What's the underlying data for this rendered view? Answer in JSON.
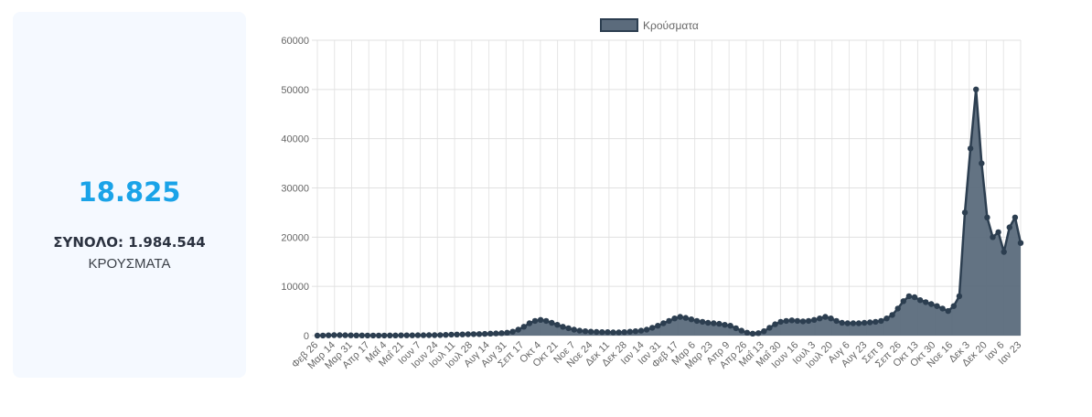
{
  "stat_card": {
    "value": "18.825",
    "total_label": "ΣΥΝΟΛΟ: 1.984.544",
    "subtitle": "ΚΡΟΥΣΜΑΤΑ"
  },
  "colors": {
    "accent": "#1aa3e8",
    "series_fill": "#5b6b7c",
    "series_line": "#2c3e50",
    "card_bg": "#f5f9ff"
  },
  "chart_data": {
    "type": "area",
    "legend_position": "top-center",
    "grid": true,
    "ylim": [
      0,
      60000
    ],
    "yticks": [
      0,
      10000,
      20000,
      30000,
      40000,
      50000,
      60000
    ],
    "xtick_labels": [
      "Φεβ 26",
      "Μαρ 14",
      "Μαρ 31",
      "Απρ 17",
      "Μαΐ 4",
      "Μαΐ 21",
      "Ιουν 7",
      "Ιουν 24",
      "Ιουλ 11",
      "Ιουλ 28",
      "Αυγ 14",
      "Αυγ 31",
      "Σεπ 17",
      "Οκτ 4",
      "Οκτ 21",
      "Νοε 7",
      "Νοε 24",
      "Δεκ 11",
      "Δεκ 28",
      "Ιαν 14",
      "Ιαν 31",
      "Φεβ 17",
      "Μαρ 6",
      "Μαρ 23",
      "Απρ 9",
      "Απρ 26",
      "Μαΐ 13",
      "Μαΐ 30",
      "Ιουν 16",
      "Ιουλ 3",
      "Ιουλ 20",
      "Αυγ 6",
      "Αυγ 23",
      "Σεπ 9",
      "Σεπ 26",
      "Οκτ 13",
      "Οκτ 30",
      "Νοε 16",
      "Δεκ 3",
      "Δεκ 20",
      "Ιαν 6",
      "Ιαν 23"
    ],
    "series": [
      {
        "name": "Κρούσματα",
        "points": [
          [
            0,
            5
          ],
          [
            1,
            20
          ],
          [
            2,
            60
          ],
          [
            3,
            100
          ],
          [
            4,
            95
          ],
          [
            5,
            80
          ],
          [
            6,
            60
          ],
          [
            7,
            40
          ],
          [
            8,
            30
          ],
          [
            9,
            25
          ],
          [
            10,
            20
          ],
          [
            11,
            20
          ],
          [
            12,
            25
          ],
          [
            13,
            30
          ],
          [
            14,
            40
          ],
          [
            15,
            50
          ],
          [
            16,
            50
          ],
          [
            17,
            60
          ],
          [
            18,
            70
          ],
          [
            19,
            80
          ],
          [
            20,
            90
          ],
          [
            21,
            100
          ],
          [
            22,
            120
          ],
          [
            23,
            150
          ],
          [
            24,
            200
          ],
          [
            25,
            220
          ],
          [
            26,
            250
          ],
          [
            27,
            270
          ],
          [
            28,
            300
          ],
          [
            29,
            320
          ],
          [
            30,
            350
          ],
          [
            31,
            400
          ],
          [
            32,
            450
          ],
          [
            33,
            500
          ],
          [
            34,
            600
          ],
          [
            35,
            800
          ],
          [
            36,
            1200
          ],
          [
            37,
            1800
          ],
          [
            38,
            2500
          ],
          [
            39,
            3000
          ],
          [
            40,
            3200
          ],
          [
            41,
            3000
          ],
          [
            42,
            2600
          ],
          [
            43,
            2200
          ],
          [
            44,
            1800
          ],
          [
            45,
            1500
          ],
          [
            46,
            1200
          ],
          [
            47,
            1000
          ],
          [
            48,
            900
          ],
          [
            49,
            800
          ],
          [
            50,
            750
          ],
          [
            51,
            700
          ],
          [
            52,
            700
          ],
          [
            53,
            650
          ],
          [
            54,
            650
          ],
          [
            55,
            700
          ],
          [
            56,
            800
          ],
          [
            57,
            900
          ],
          [
            58,
            1000
          ],
          [
            59,
            1200
          ],
          [
            60,
            1600
          ],
          [
            61,
            2000
          ],
          [
            62,
            2500
          ],
          [
            63,
            3000
          ],
          [
            64,
            3500
          ],
          [
            65,
            3800
          ],
          [
            66,
            3600
          ],
          [
            67,
            3300
          ],
          [
            68,
            3000
          ],
          [
            69,
            2800
          ],
          [
            70,
            2600
          ],
          [
            71,
            2500
          ],
          [
            72,
            2400
          ],
          [
            73,
            2200
          ],
          [
            74,
            2000
          ],
          [
            75,
            1500
          ],
          [
            76,
            1000
          ],
          [
            77,
            600
          ],
          [
            78,
            400
          ],
          [
            79,
            500
          ],
          [
            80,
            900
          ],
          [
            81,
            1600
          ],
          [
            82,
            2300
          ],
          [
            83,
            2800
          ],
          [
            84,
            3000
          ],
          [
            85,
            3100
          ],
          [
            86,
            3000
          ],
          [
            87,
            2900
          ],
          [
            88,
            3000
          ],
          [
            89,
            3200
          ],
          [
            90,
            3500
          ],
          [
            91,
            3800
          ],
          [
            92,
            3500
          ],
          [
            93,
            3000
          ],
          [
            94,
            2600
          ],
          [
            95,
            2500
          ],
          [
            96,
            2500
          ],
          [
            97,
            2500
          ],
          [
            98,
            2600
          ],
          [
            99,
            2700
          ],
          [
            100,
            2800
          ],
          [
            101,
            3000
          ],
          [
            102,
            3500
          ],
          [
            103,
            4200
          ],
          [
            104,
            5500
          ],
          [
            105,
            7000
          ],
          [
            106,
            8000
          ],
          [
            107,
            7800
          ],
          [
            108,
            7200
          ],
          [
            109,
            6800
          ],
          [
            110,
            6400
          ],
          [
            111,
            6000
          ],
          [
            112,
            5500
          ],
          [
            113,
            5000
          ],
          [
            114,
            6000
          ],
          [
            115,
            8000
          ],
          [
            116,
            25000
          ],
          [
            117,
            38000
          ],
          [
            118,
            50000
          ],
          [
            119,
            35000
          ],
          [
            120,
            24000
          ],
          [
            121,
            20000
          ],
          [
            122,
            21000
          ],
          [
            123,
            17000
          ],
          [
            124,
            22000
          ],
          [
            125,
            24000
          ],
          [
            126,
            18825
          ]
        ]
      }
    ]
  }
}
